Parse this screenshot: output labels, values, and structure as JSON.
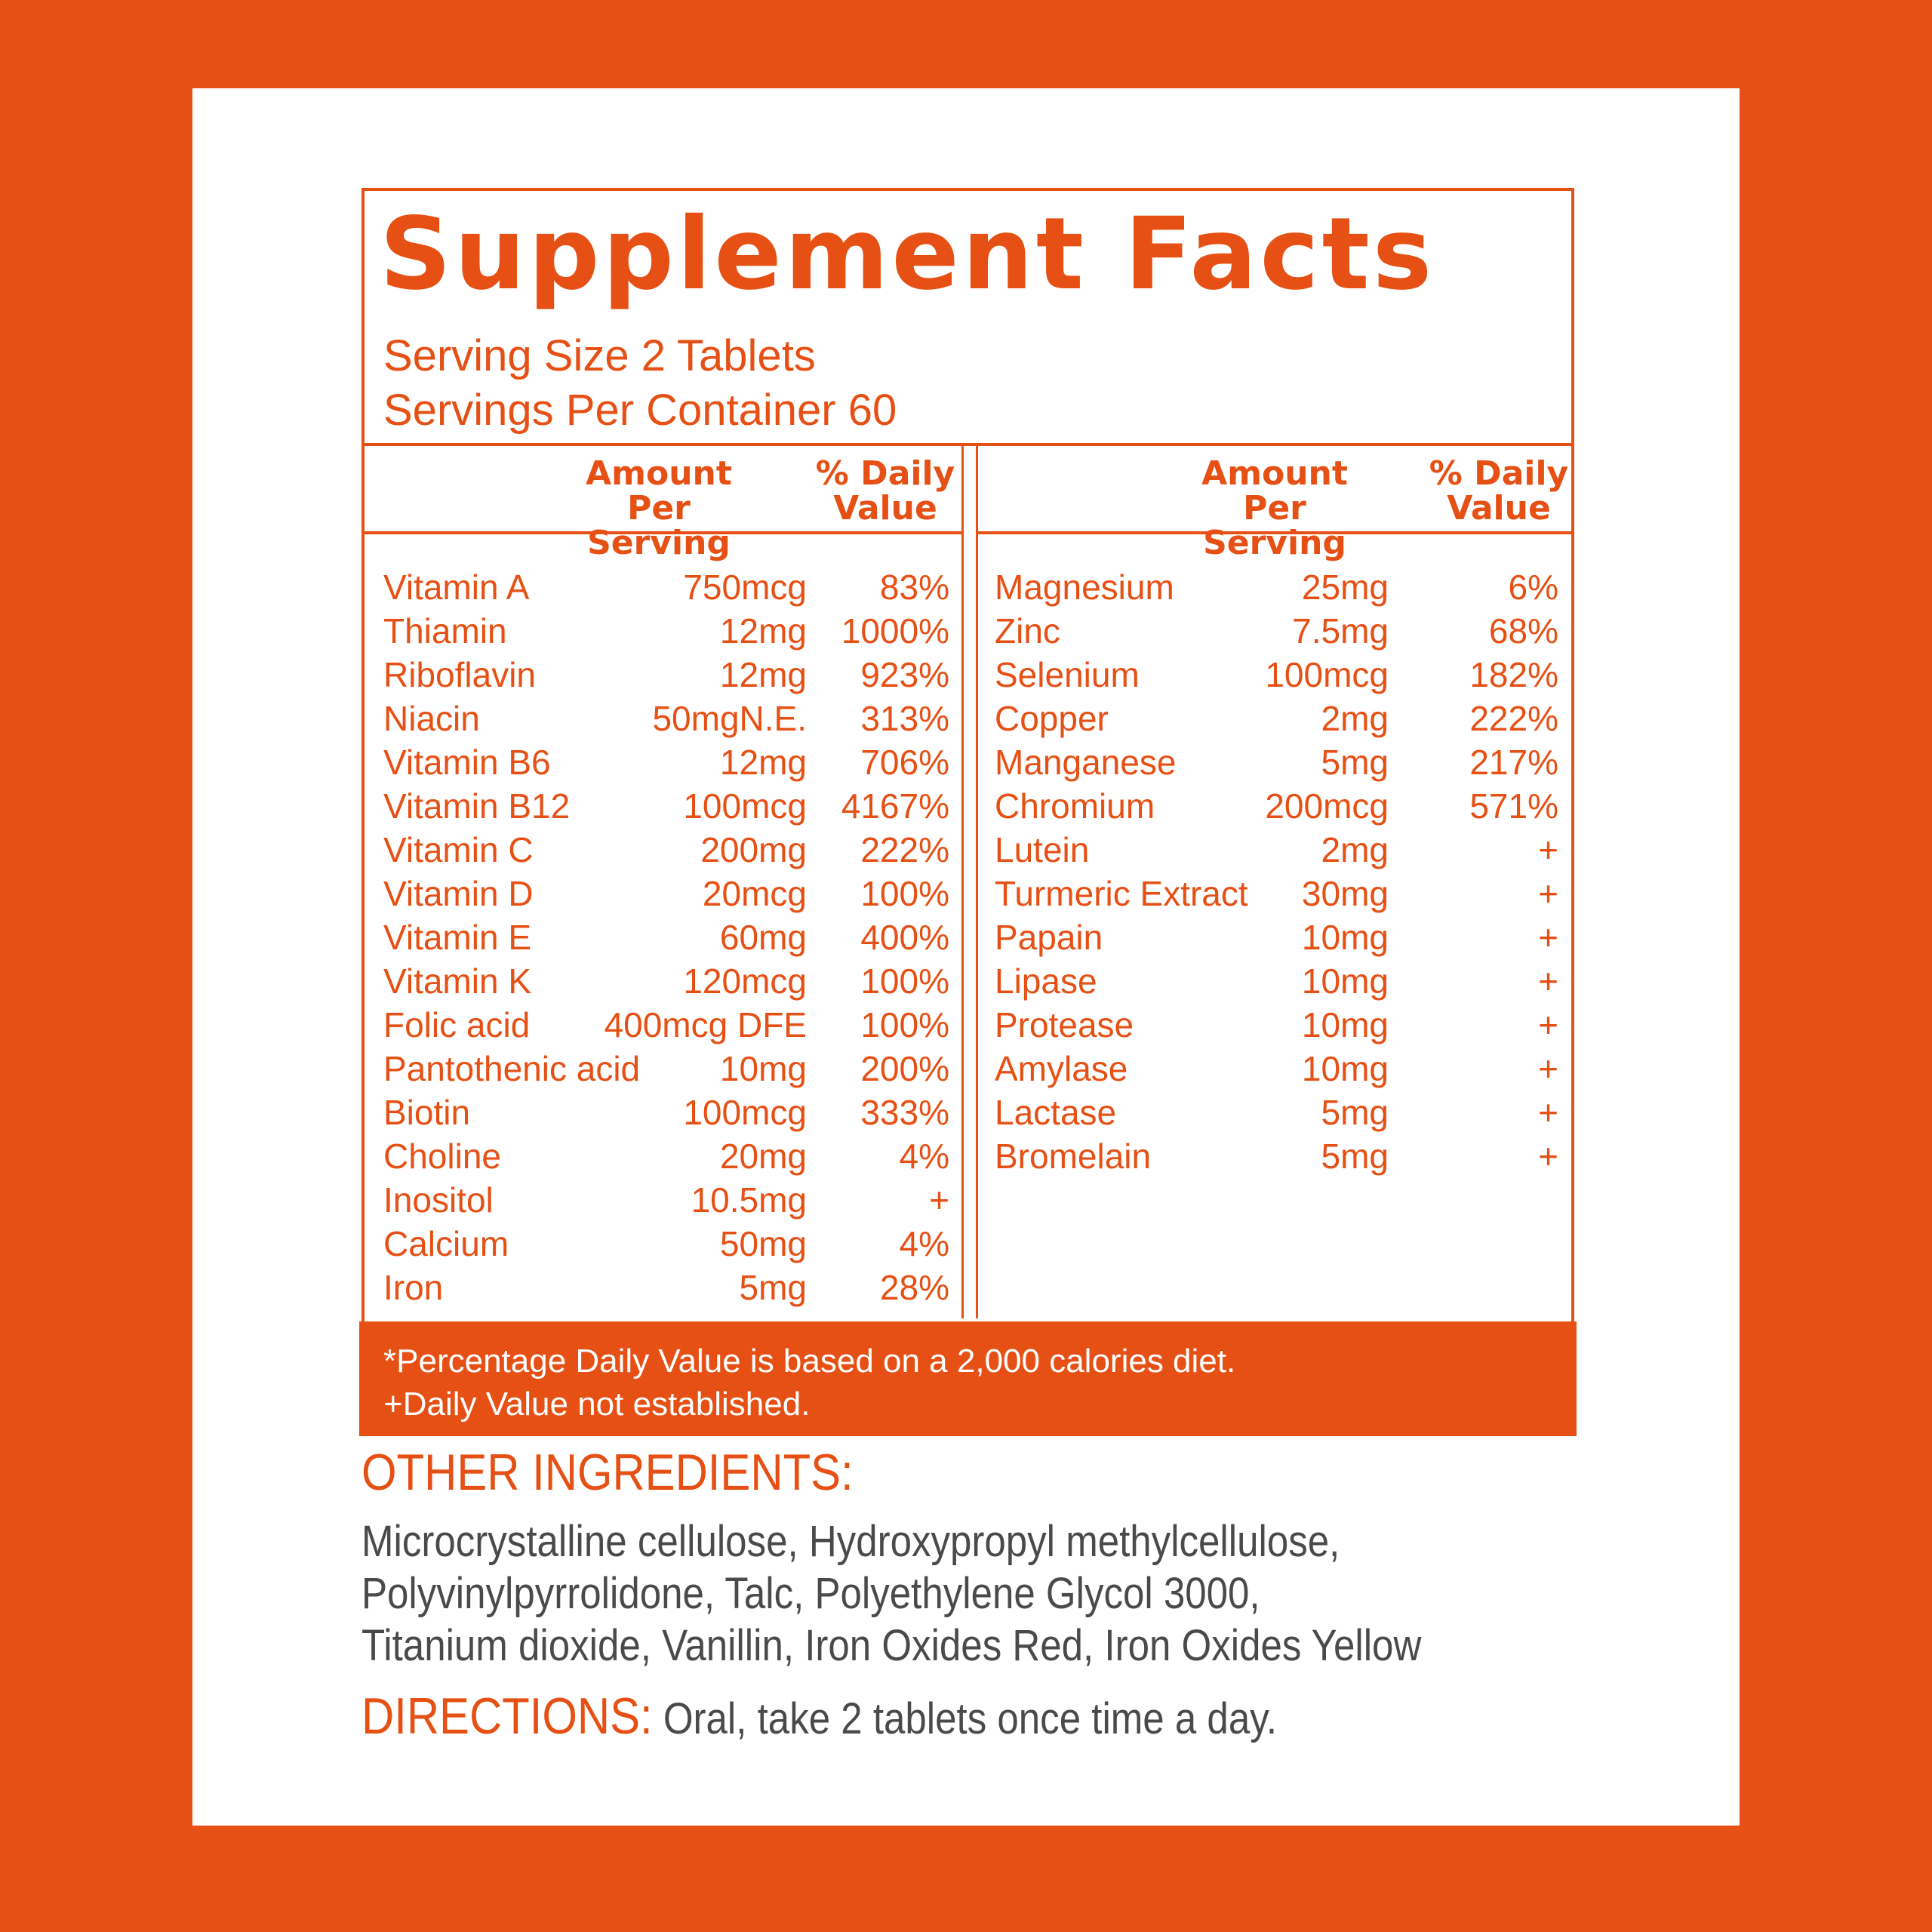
{
  "title": "Supplement Facts",
  "serving_size": "Serving Size 2 Tablets",
  "servings_per_container": "Servings Per Container 60",
  "headers": {
    "amount": "Amount\nPer Serving",
    "daily_value": "% Daily\nValue"
  },
  "left_rows": [
    {
      "name": "Vitamin A",
      "amount": "750mcg",
      "dv": "83%"
    },
    {
      "name": "Thiamin",
      "amount": "12mg",
      "dv": "1000%"
    },
    {
      "name": "Riboflavin",
      "amount": "12mg",
      "dv": "923%"
    },
    {
      "name": "Niacin",
      "amount": "50mgN.E.",
      "dv": "313%"
    },
    {
      "name": "Vitamin B6",
      "amount": "12mg",
      "dv": "706%"
    },
    {
      "name": "Vitamin B12",
      "amount": "100mcg",
      "dv": "4167%"
    },
    {
      "name": "Vitamin C",
      "amount": "200mg",
      "dv": "222%"
    },
    {
      "name": "Vitamin D",
      "amount": "20mcg",
      "dv": "100%"
    },
    {
      "name": "Vitamin E",
      "amount": "60mg",
      "dv": "400%"
    },
    {
      "name": "Vitamin K",
      "amount": "120mcg",
      "dv": "100%"
    },
    {
      "name": "Folic acid",
      "amount": "400mcg DFE",
      "dv": "100%"
    },
    {
      "name": "Pantothenic acid",
      "amount": "10mg",
      "dv": "200%"
    },
    {
      "name": "Biotin",
      "amount": "100mcg",
      "dv": "333%"
    },
    {
      "name": "Choline",
      "amount": "20mg",
      "dv": "4%"
    },
    {
      "name": "Inositol",
      "amount": "10.5mg",
      "dv": "+"
    },
    {
      "name": "Calcium",
      "amount": "50mg",
      "dv": "4%"
    },
    {
      "name": "Iron",
      "amount": "5mg",
      "dv": "28%"
    }
  ],
  "right_rows": [
    {
      "name": "Magnesium",
      "amount": "25mg",
      "dv": "6%"
    },
    {
      "name": "Zinc",
      "amount": "7.5mg",
      "dv": "68%"
    },
    {
      "name": "Selenium",
      "amount": "100mcg",
      "dv": "182%"
    },
    {
      "name": "Copper",
      "amount": "2mg",
      "dv": "222%"
    },
    {
      "name": "Manganese",
      "amount": "5mg",
      "dv": "217%"
    },
    {
      "name": "Chromium",
      "amount": "200mcg",
      "dv": "571%"
    },
    {
      "name": "Lutein",
      "amount": "2mg",
      "dv": "+"
    },
    {
      "name": "Turmeric Extract",
      "amount": "30mg",
      "dv": "+"
    },
    {
      "name": "Papain",
      "amount": "10mg",
      "dv": "+"
    },
    {
      "name": "Lipase",
      "amount": "10mg",
      "dv": "+"
    },
    {
      "name": "Protease",
      "amount": "10mg",
      "dv": "+"
    },
    {
      "name": "Amylase",
      "amount": "10mg",
      "dv": "+"
    },
    {
      "name": "Lactase",
      "amount": "5mg",
      "dv": "+"
    },
    {
      "name": "Bromelain",
      "amount": "5mg",
      "dv": "+"
    }
  ],
  "footnote": {
    "line1": "*Percentage Daily Value is based on a 2,000 calories diet.",
    "line2": "+Daily Value not established."
  },
  "other_ingredients": {
    "heading": "OTHER INGREDIENTS:",
    "lines": [
      "Microcrystalline cellulose, Hydroxypropyl methylcellulose,",
      "Polyvinylpyrrolidone, Talc, Polyethylene Glycol 3000,",
      "Titanium dioxide, Vanillin, Iron Oxides Red, Iron Oxides Yellow"
    ]
  },
  "directions": {
    "heading": "DIRECTIONS:",
    "text": " Oral, take 2 tablets once time a day."
  },
  "colors": {
    "accent": "#e65014",
    "body_text": "#4a4a4a",
    "card": "#ffffff"
  }
}
